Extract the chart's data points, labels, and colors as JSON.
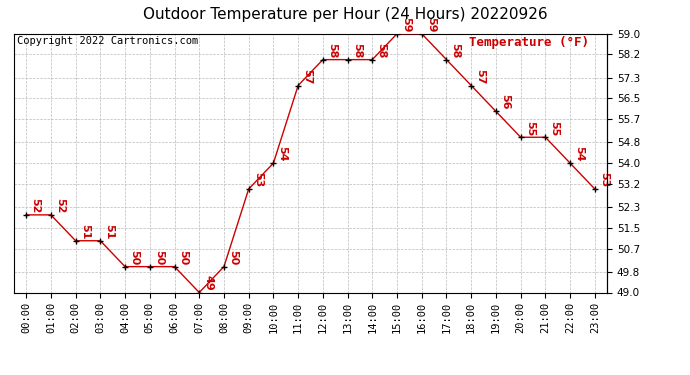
{
  "title": "Outdoor Temperature per Hour (24 Hours) 20220926",
  "copyright_text": "Copyright 2022 Cartronics.com",
  "legend_label": "Temperature (°F)",
  "hours": [
    "00:00",
    "01:00",
    "02:00",
    "03:00",
    "04:00",
    "05:00",
    "06:00",
    "07:00",
    "08:00",
    "09:00",
    "10:00",
    "11:00",
    "12:00",
    "13:00",
    "14:00",
    "15:00",
    "16:00",
    "17:00",
    "18:00",
    "19:00",
    "20:00",
    "21:00",
    "22:00",
    "23:00"
  ],
  "temps": [
    52,
    52,
    51,
    51,
    50,
    50,
    50,
    49,
    50,
    53,
    54,
    57,
    58,
    58,
    58,
    59,
    59,
    58,
    57,
    56,
    55,
    55,
    54,
    53
  ],
  "ylim_min": 49.0,
  "ylim_max": 59.0,
  "yticks": [
    49.0,
    49.8,
    50.7,
    51.5,
    52.3,
    53.2,
    54.0,
    54.8,
    55.7,
    56.5,
    57.3,
    58.2,
    59.0
  ],
  "line_color": "#cc0000",
  "marker_color": "#000000",
  "label_color": "#cc0000",
  "title_fontsize": 11,
  "copyright_fontsize": 7.5,
  "tick_fontsize": 7.5,
  "label_fontsize": 8,
  "legend_fontsize": 9,
  "background_color": "#ffffff",
  "grid_color": "#bbbbbb"
}
